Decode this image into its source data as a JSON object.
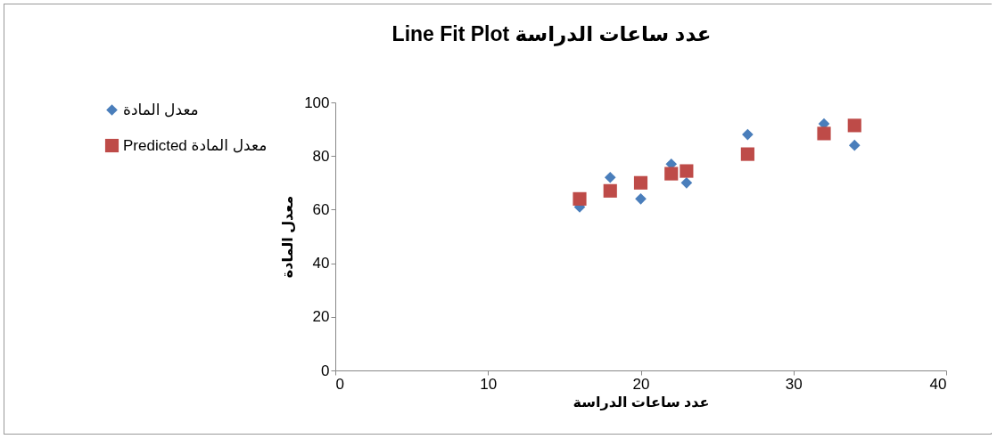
{
  "chart_data": {
    "type": "scatter",
    "title": "Line Fit  Plot عدد ساعات الدراسة",
    "xlabel": "عدد ساعات الدراسة",
    "ylabel": "معدل المادة",
    "x": [
      16,
      18,
      20,
      22,
      23,
      27,
      32,
      34
    ],
    "series": [
      {
        "name": "معدل المادة",
        "color": "#4a7ebb",
        "marker": "diamond",
        "values": [
          61,
          72,
          64,
          77,
          70,
          88,
          92,
          84
        ]
      },
      {
        "name": "Predicted معدل المادة",
        "color": "#be4b48",
        "marker": "square",
        "values": [
          64,
          67,
          70,
          73.4,
          74.4,
          80.7,
          88.4,
          91.4
        ]
      }
    ],
    "xlim": [
      0,
      40
    ],
    "xticks": [
      0,
      10,
      20,
      30,
      40
    ],
    "ylim": [
      0,
      100
    ],
    "yticks": [
      0,
      20,
      40,
      60,
      80,
      100
    ],
    "grid": false,
    "legend": "left"
  }
}
